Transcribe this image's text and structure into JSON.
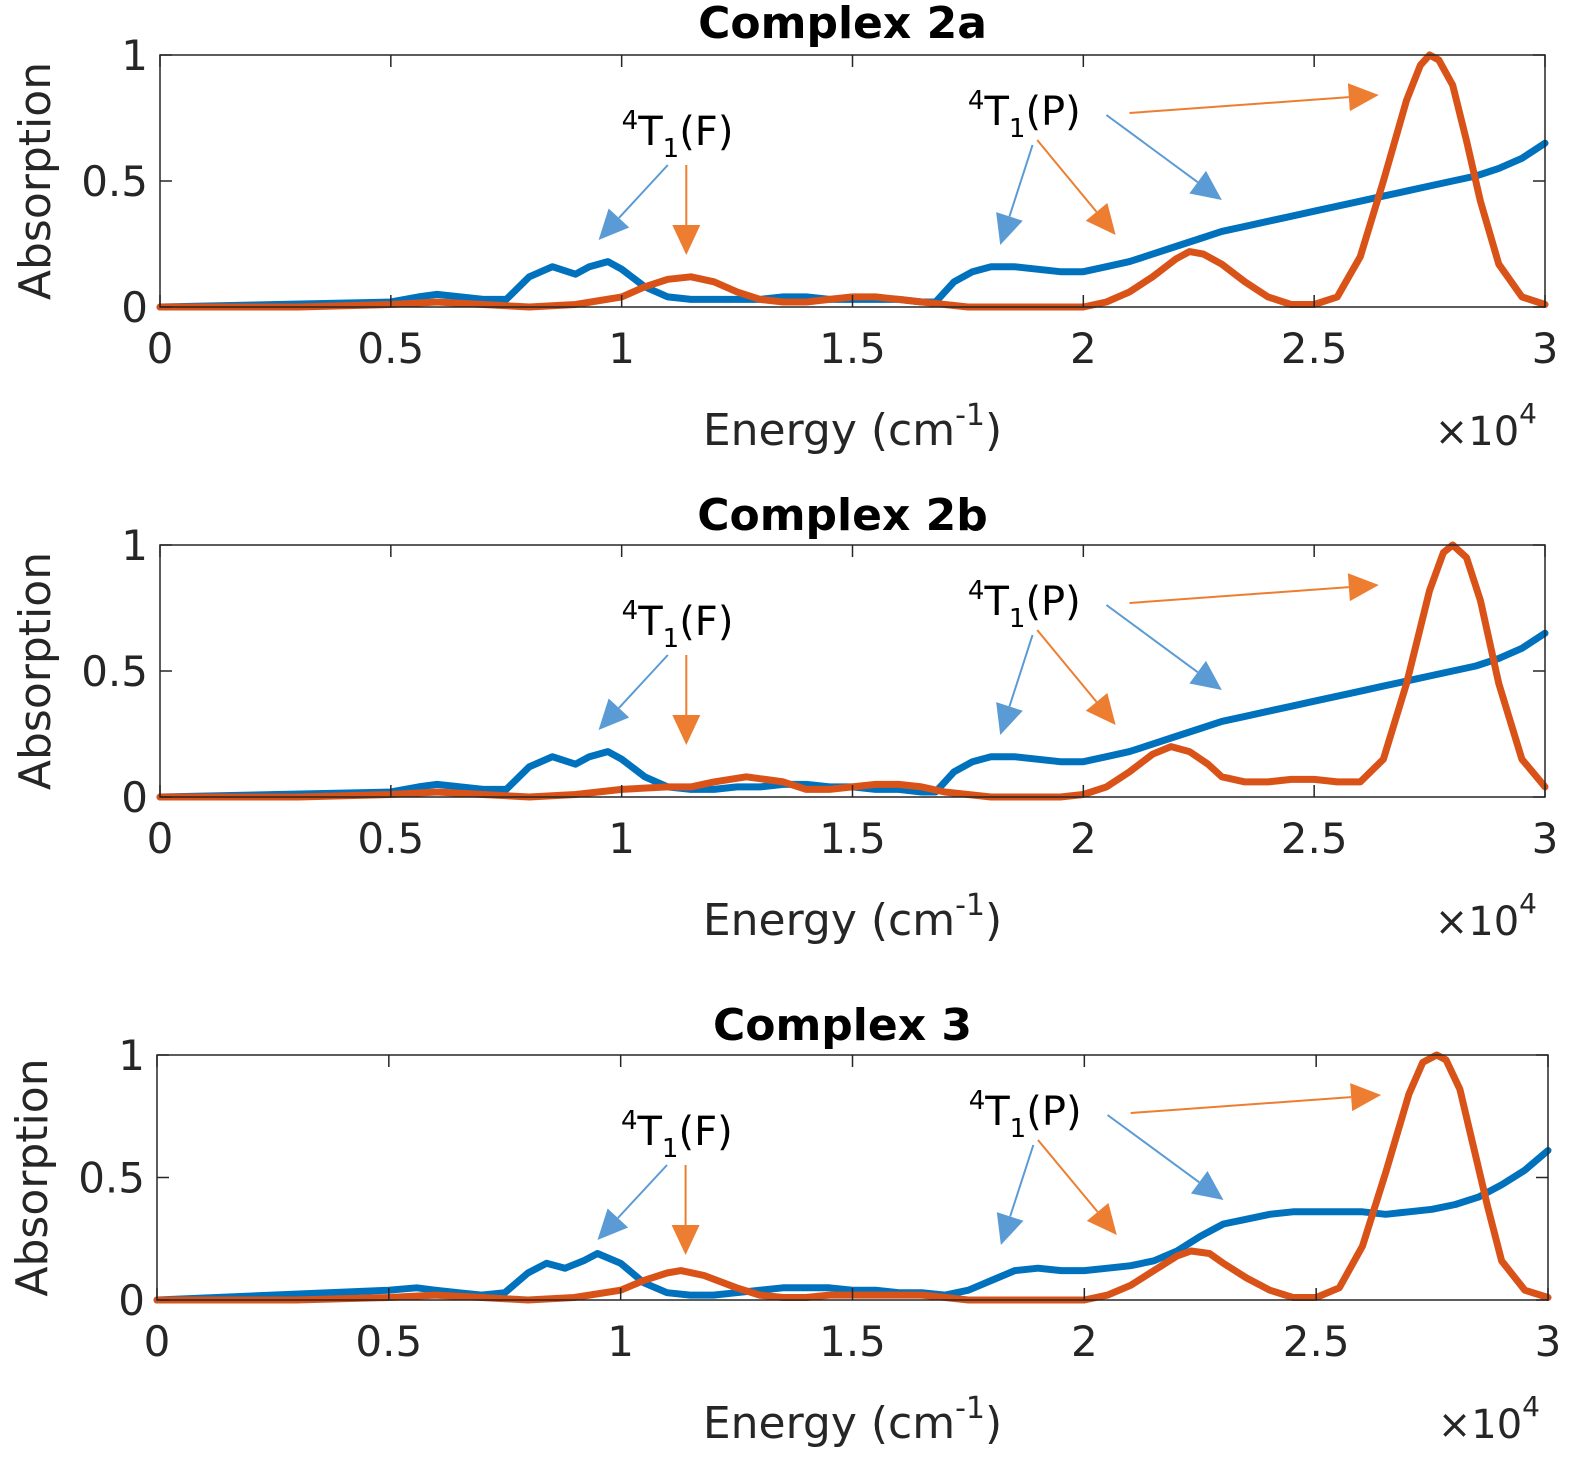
{
  "colors": {
    "blue": "#0072BD",
    "orange": "#D95319",
    "blue_arrow": "#5B9BD5",
    "orange_arrow": "#ED7D31",
    "axis": "#262626"
  },
  "axes_common": {
    "xlabel_main": "Energy (cm",
    "xlabel_sup": "-1",
    "xlabel_close": ")",
    "ylabel": "Absorption",
    "x_multiplier_prefix": "×10",
    "x_multiplier_exp": "4",
    "xticks": [
      0,
      0.5,
      1,
      1.5,
      2,
      2.5,
      3
    ],
    "xtick_labels": [
      "0",
      "0.5",
      "1",
      "1.5",
      "2",
      "2.5",
      "3"
    ],
    "yticks": [
      0,
      0.5,
      1
    ],
    "ytick_labels": [
      "0",
      "0.5",
      "1"
    ]
  },
  "annotations_text": {
    "f_sup": "4",
    "f_main": "T",
    "f_sub": "1",
    "f_tail": "(F)",
    "p_sup": "4",
    "p_main": "T",
    "p_sub": "1",
    "p_tail": "(P)"
  },
  "chart_data": [
    {
      "type": "line",
      "title": "Complex 2a",
      "xlim": [
        0,
        3
      ],
      "ylim": [
        0,
        1
      ],
      "grid": false,
      "series": [
        {
          "color": "blue",
          "x": [
            0,
            0.5,
            0.56,
            0.6,
            0.65,
            0.7,
            0.75,
            0.8,
            0.85,
            0.9,
            0.93,
            0.97,
            1.0,
            1.05,
            1.1,
            1.15,
            1.2,
            1.25,
            1.3,
            1.35,
            1.4,
            1.45,
            1.5,
            1.55,
            1.6,
            1.65,
            1.68,
            1.72,
            1.76,
            1.8,
            1.85,
            1.9,
            1.95,
            2.0,
            2.05,
            2.1,
            2.15,
            2.2,
            2.25,
            2.3,
            2.35,
            2.4,
            2.45,
            2.5,
            2.55,
            2.6,
            2.65,
            2.7,
            2.75,
            2.8,
            2.85,
            2.9,
            2.95,
            3.0
          ],
          "y": [
            0,
            0.02,
            0.04,
            0.05,
            0.04,
            0.03,
            0.03,
            0.12,
            0.16,
            0.13,
            0.16,
            0.18,
            0.15,
            0.08,
            0.04,
            0.03,
            0.03,
            0.03,
            0.03,
            0.04,
            0.04,
            0.03,
            0.03,
            0.03,
            0.03,
            0.02,
            0.02,
            0.1,
            0.14,
            0.16,
            0.16,
            0.15,
            0.14,
            0.14,
            0.16,
            0.18,
            0.21,
            0.24,
            0.27,
            0.3,
            0.32,
            0.34,
            0.36,
            0.38,
            0.4,
            0.42,
            0.44,
            0.46,
            0.48,
            0.5,
            0.52,
            0.55,
            0.59,
            0.65
          ]
        },
        {
          "color": "orange",
          "x": [
            0,
            0.3,
            0.5,
            0.6,
            0.7,
            0.8,
            0.9,
            1.0,
            1.05,
            1.1,
            1.15,
            1.2,
            1.25,
            1.3,
            1.35,
            1.4,
            1.45,
            1.5,
            1.55,
            1.6,
            1.65,
            1.7,
            1.75,
            1.8,
            1.85,
            1.9,
            1.95,
            2.0,
            2.05,
            2.1,
            2.15,
            2.2,
            2.23,
            2.26,
            2.3,
            2.35,
            2.4,
            2.45,
            2.5,
            2.55,
            2.6,
            2.65,
            2.7,
            2.73,
            2.75,
            2.77,
            2.8,
            2.83,
            2.86,
            2.9,
            2.95,
            3.0
          ],
          "y": [
            0,
            0.0,
            0.01,
            0.02,
            0.01,
            0.0,
            0.01,
            0.04,
            0.08,
            0.11,
            0.12,
            0.1,
            0.06,
            0.03,
            0.02,
            0.02,
            0.03,
            0.04,
            0.04,
            0.03,
            0.02,
            0.01,
            0.0,
            0.0,
            0.0,
            0.0,
            0.0,
            0.0,
            0.02,
            0.06,
            0.12,
            0.19,
            0.22,
            0.21,
            0.17,
            0.1,
            0.04,
            0.01,
            0.01,
            0.04,
            0.2,
            0.5,
            0.82,
            0.96,
            1.0,
            0.98,
            0.88,
            0.66,
            0.42,
            0.17,
            0.04,
            0.01
          ]
        }
      ]
    },
    {
      "type": "line",
      "title": "Complex 2b",
      "xlim": [
        0,
        3
      ],
      "ylim": [
        0,
        1
      ],
      "grid": false,
      "series": [
        {
          "color": "blue",
          "x": [
            0,
            0.5,
            0.56,
            0.6,
            0.65,
            0.7,
            0.75,
            0.8,
            0.85,
            0.9,
            0.93,
            0.97,
            1.0,
            1.05,
            1.1,
            1.15,
            1.2,
            1.25,
            1.3,
            1.35,
            1.4,
            1.45,
            1.5,
            1.55,
            1.6,
            1.65,
            1.68,
            1.72,
            1.76,
            1.8,
            1.85,
            1.9,
            1.95,
            2.0,
            2.05,
            2.1,
            2.15,
            2.2,
            2.25,
            2.3,
            2.35,
            2.4,
            2.45,
            2.5,
            2.55,
            2.6,
            2.65,
            2.7,
            2.75,
            2.8,
            2.85,
            2.9,
            2.95,
            3.0
          ],
          "y": [
            0,
            0.02,
            0.04,
            0.05,
            0.04,
            0.03,
            0.03,
            0.12,
            0.16,
            0.13,
            0.16,
            0.18,
            0.15,
            0.08,
            0.04,
            0.03,
            0.03,
            0.04,
            0.04,
            0.05,
            0.05,
            0.04,
            0.04,
            0.03,
            0.03,
            0.02,
            0.02,
            0.1,
            0.14,
            0.16,
            0.16,
            0.15,
            0.14,
            0.14,
            0.16,
            0.18,
            0.21,
            0.24,
            0.27,
            0.3,
            0.32,
            0.34,
            0.36,
            0.38,
            0.4,
            0.42,
            0.44,
            0.46,
            0.48,
            0.5,
            0.52,
            0.55,
            0.59,
            0.65
          ]
        },
        {
          "color": "orange",
          "x": [
            0,
            0.3,
            0.5,
            0.6,
            0.7,
            0.8,
            0.9,
            1.0,
            1.1,
            1.15,
            1.2,
            1.27,
            1.35,
            1.4,
            1.45,
            1.5,
            1.55,
            1.6,
            1.65,
            1.7,
            1.75,
            1.8,
            1.85,
            1.9,
            1.95,
            2.0,
            2.05,
            2.1,
            2.15,
            2.19,
            2.23,
            2.27,
            2.3,
            2.35,
            2.4,
            2.45,
            2.5,
            2.55,
            2.6,
            2.65,
            2.7,
            2.75,
            2.78,
            2.8,
            2.83,
            2.86,
            2.9,
            2.95,
            3.0
          ],
          "y": [
            0,
            0.0,
            0.01,
            0.02,
            0.01,
            0.0,
            0.01,
            0.03,
            0.04,
            0.04,
            0.06,
            0.08,
            0.06,
            0.03,
            0.03,
            0.04,
            0.05,
            0.05,
            0.04,
            0.02,
            0.01,
            0.0,
            0.0,
            0.0,
            0.0,
            0.01,
            0.04,
            0.1,
            0.17,
            0.2,
            0.18,
            0.13,
            0.08,
            0.06,
            0.06,
            0.07,
            0.07,
            0.06,
            0.06,
            0.15,
            0.45,
            0.82,
            0.97,
            1.0,
            0.95,
            0.78,
            0.45,
            0.15,
            0.04
          ]
        }
      ]
    },
    {
      "type": "line",
      "title": "Complex 3",
      "xlim": [
        0,
        3
      ],
      "ylim": [
        0,
        1
      ],
      "grid": false,
      "series": [
        {
          "color": "blue",
          "x": [
            0,
            0.5,
            0.56,
            0.6,
            0.65,
            0.7,
            0.75,
            0.8,
            0.84,
            0.88,
            0.92,
            0.95,
            1.0,
            1.05,
            1.1,
            1.15,
            1.2,
            1.25,
            1.3,
            1.35,
            1.4,
            1.45,
            1.5,
            1.55,
            1.6,
            1.65,
            1.7,
            1.75,
            1.8,
            1.85,
            1.9,
            1.95,
            2.0,
            2.05,
            2.1,
            2.15,
            2.2,
            2.25,
            2.3,
            2.35,
            2.4,
            2.45,
            2.5,
            2.55,
            2.6,
            2.65,
            2.7,
            2.75,
            2.8,
            2.85,
            2.9,
            2.95,
            3.0
          ],
          "y": [
            0,
            0.04,
            0.05,
            0.04,
            0.03,
            0.02,
            0.03,
            0.11,
            0.15,
            0.13,
            0.16,
            0.19,
            0.15,
            0.07,
            0.03,
            0.02,
            0.02,
            0.03,
            0.04,
            0.05,
            0.05,
            0.05,
            0.04,
            0.04,
            0.03,
            0.03,
            0.02,
            0.04,
            0.08,
            0.12,
            0.13,
            0.12,
            0.12,
            0.13,
            0.14,
            0.16,
            0.2,
            0.26,
            0.31,
            0.33,
            0.35,
            0.36,
            0.36,
            0.36,
            0.36,
            0.35,
            0.36,
            0.37,
            0.39,
            0.42,
            0.47,
            0.53,
            0.61
          ]
        },
        {
          "color": "orange",
          "x": [
            0,
            0.3,
            0.5,
            0.6,
            0.7,
            0.8,
            0.9,
            1.0,
            1.05,
            1.1,
            1.13,
            1.18,
            1.25,
            1.3,
            1.35,
            1.4,
            1.45,
            1.5,
            1.55,
            1.6,
            1.65,
            1.7,
            1.75,
            1.8,
            1.85,
            1.9,
            1.95,
            2.0,
            2.05,
            2.1,
            2.15,
            2.2,
            2.23,
            2.27,
            2.3,
            2.35,
            2.4,
            2.45,
            2.5,
            2.55,
            2.6,
            2.65,
            2.7,
            2.73,
            2.76,
            2.78,
            2.81,
            2.84,
            2.87,
            2.9,
            2.95,
            3.0
          ],
          "y": [
            0,
            0.0,
            0.01,
            0.02,
            0.01,
            0.0,
            0.01,
            0.04,
            0.08,
            0.11,
            0.12,
            0.1,
            0.05,
            0.02,
            0.01,
            0.01,
            0.02,
            0.02,
            0.02,
            0.02,
            0.02,
            0.01,
            0.0,
            0.0,
            0.0,
            0.0,
            0.0,
            0.0,
            0.02,
            0.06,
            0.12,
            0.18,
            0.2,
            0.19,
            0.15,
            0.09,
            0.04,
            0.01,
            0.01,
            0.05,
            0.22,
            0.52,
            0.84,
            0.97,
            1.0,
            0.98,
            0.86,
            0.62,
            0.38,
            0.16,
            0.04,
            0.01
          ]
        }
      ]
    }
  ]
}
